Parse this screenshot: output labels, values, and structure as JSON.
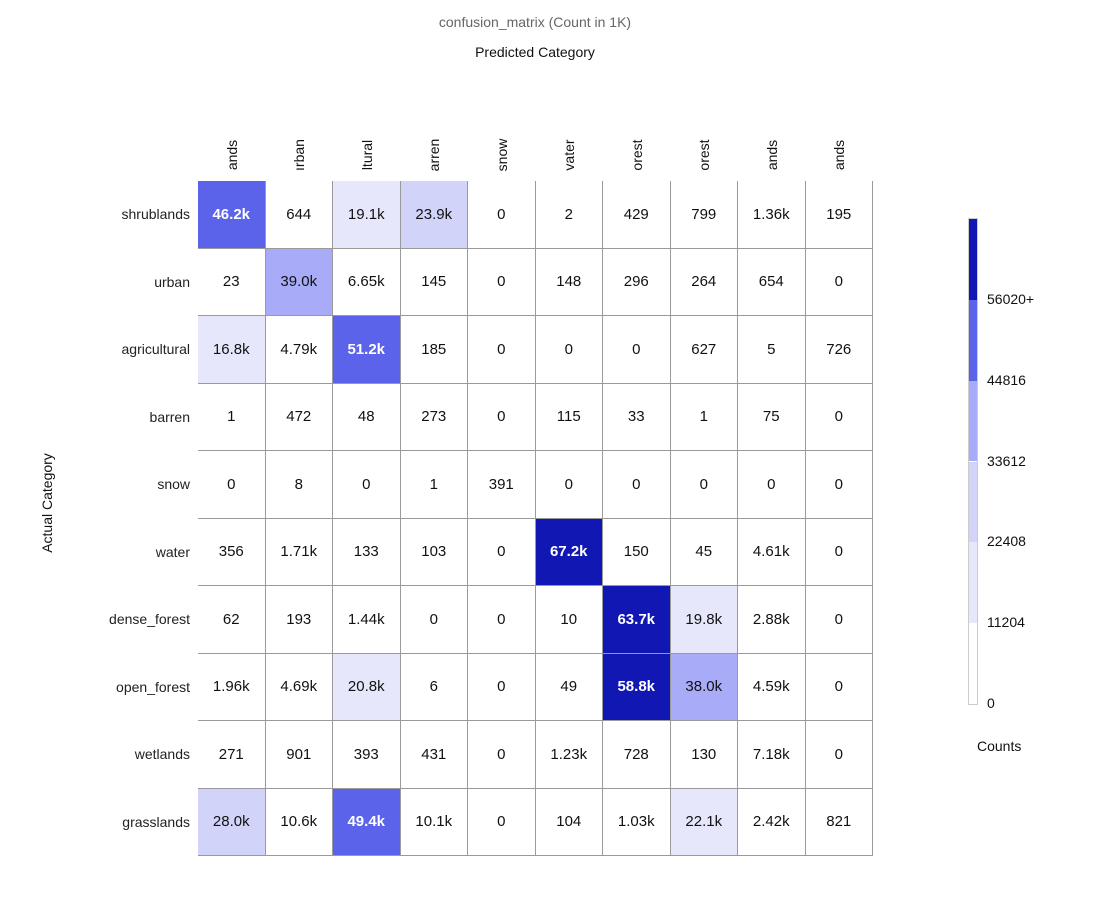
{
  "chart_data": {
    "type": "heatmap",
    "title": "confusion_matrix (Count in 1K)",
    "xlabel": "Predicted Category",
    "ylabel": "Actual Category",
    "x_tick_labels_visible": [
      "ands",
      "ırban",
      "ltural",
      "arren",
      "snow",
      "vater",
      "orest",
      "orest",
      "ands",
      "ands"
    ],
    "y_categories": [
      "shrublands",
      "urban",
      "agricultural",
      "barren",
      "snow",
      "water",
      "dense_forest",
      "open_forest",
      "wetlands",
      "grasslands"
    ],
    "values": [
      [
        46200,
        644,
        19100,
        23900,
        0,
        2,
        429,
        799,
        1360,
        195
      ],
      [
        23,
        39000,
        6650,
        145,
        0,
        148,
        296,
        264,
        654,
        0
      ],
      [
        16800,
        4790,
        51200,
        185,
        0,
        0,
        0,
        627,
        5,
        726
      ],
      [
        1,
        472,
        48,
        273,
        0,
        115,
        33,
        1,
        75,
        0
      ],
      [
        0,
        8,
        0,
        1,
        391,
        0,
        0,
        0,
        0,
        0
      ],
      [
        356,
        1710,
        133,
        103,
        0,
        67200,
        150,
        45,
        4610,
        0
      ],
      [
        62,
        193,
        1440,
        0,
        0,
        10,
        63700,
        19800,
        2880,
        0
      ],
      [
        1960,
        4690,
        20800,
        6,
        0,
        49,
        58800,
        38000,
        4590,
        0
      ],
      [
        271,
        901,
        393,
        431,
        0,
        1230,
        728,
        130,
        7180,
        0
      ],
      [
        28000,
        10600,
        49400,
        10100,
        0,
        104,
        1030,
        22100,
        2420,
        821
      ]
    ],
    "cell_labels": [
      [
        "46.2k",
        "644",
        "19.1k",
        "23.9k",
        "0",
        "2",
        "429",
        "799",
        "1.36k",
        "195"
      ],
      [
        "23",
        "39.0k",
        "6.65k",
        "145",
        "0",
        "148",
        "296",
        "264",
        "654",
        "0"
      ],
      [
        "16.8k",
        "4.79k",
        "51.2k",
        "185",
        "0",
        "0",
        "0",
        "627",
        "5",
        "726"
      ],
      [
        "1",
        "472",
        "48",
        "273",
        "0",
        "115",
        "33",
        "1",
        "75",
        "0"
      ],
      [
        "0",
        "8",
        "0",
        "1",
        "391",
        "0",
        "0",
        "0",
        "0",
        "0"
      ],
      [
        "356",
        "1.71k",
        "133",
        "103",
        "0",
        "67.2k",
        "150",
        "45",
        "4.61k",
        "0"
      ],
      [
        "62",
        "193",
        "1.44k",
        "0",
        "0",
        "10",
        "63.7k",
        "19.8k",
        "2.88k",
        "0"
      ],
      [
        "1.96k",
        "4.69k",
        "20.8k",
        "6",
        "0",
        "49",
        "58.8k",
        "38.0k",
        "4.59k",
        "0"
      ],
      [
        "271",
        "901",
        "393",
        "431",
        "0",
        "1.23k",
        "728",
        "130",
        "7.18k",
        "0"
      ],
      [
        "28.0k",
        "10.6k",
        "49.4k",
        "10.1k",
        "0",
        "104",
        "1.03k",
        "22.1k",
        "2.42k",
        "821"
      ]
    ],
    "color_scale": {
      "title": "Counts",
      "thresholds": [
        0,
        11204,
        22408,
        33612,
        44816,
        56020
      ],
      "tick_labels": [
        "0",
        "11204",
        "22408",
        "33612",
        "44816",
        "56020+"
      ],
      "colors": [
        "#ffffff",
        "#e6e7fb",
        "#d1d3f8",
        "#a8abf7",
        "#5b63ea",
        "#1017b3"
      ],
      "label_text_dark": "#111111",
      "label_text_light": "#ffffff"
    },
    "grid_line_color": "#9a9a9a"
  }
}
